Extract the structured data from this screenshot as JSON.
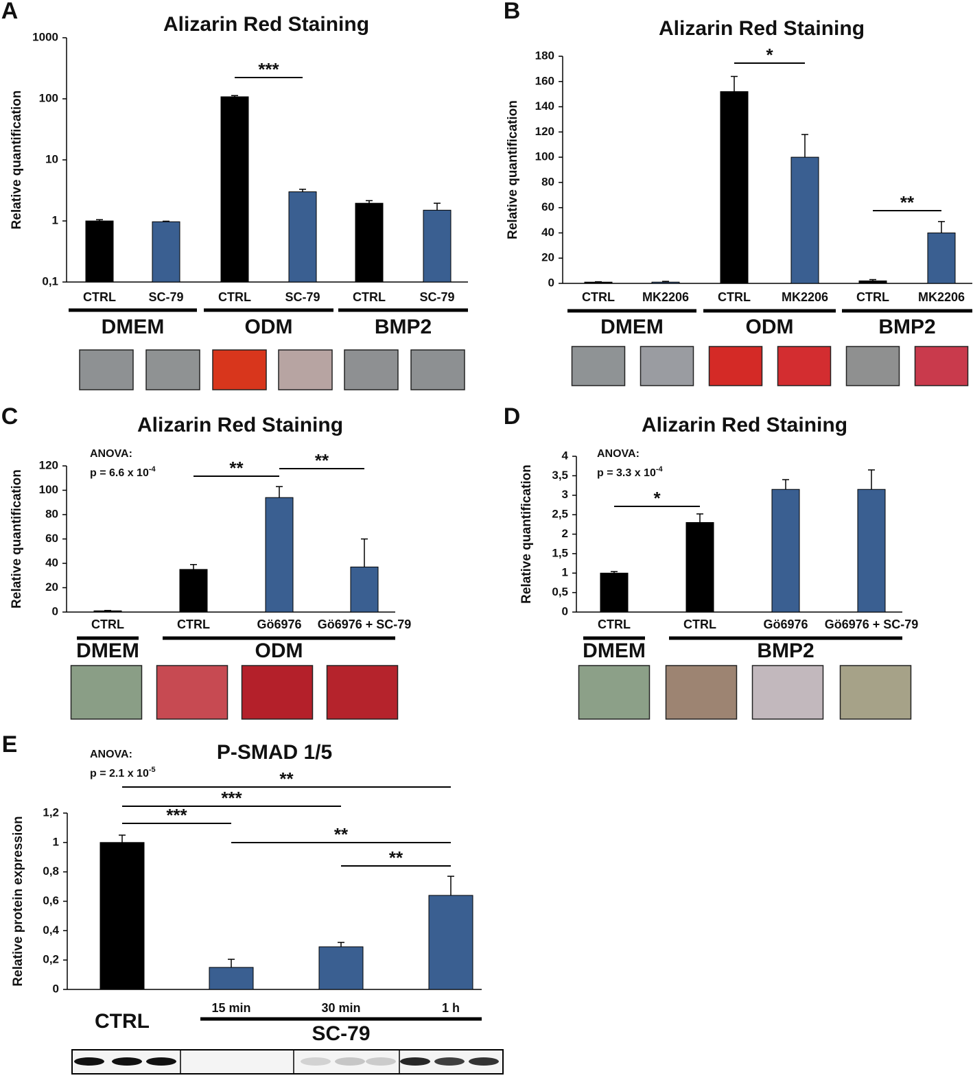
{
  "chart_data": [
    {
      "type": "bar",
      "panel": "A",
      "title": "Alizarin Red Staining",
      "y_label": "Relative quantification",
      "log_scale": true,
      "categories": [
        "CTRL",
        "SC-79",
        "CTRL",
        "SC-79",
        "CTRL",
        "SC-79"
      ],
      "values": [
        1,
        0.97,
        108,
        3,
        1.95,
        1.5
      ],
      "errors": [
        0.05,
        0.02,
        5,
        0.3,
        0.2,
        0.45
      ],
      "colors": [
        "#000000",
        "#3a5f91",
        "#000000",
        "#3a5f91",
        "#000000",
        "#3a5f91"
      ],
      "ylim": [
        0.1,
        1000
      ],
      "yticks": [
        {
          "value": 0.1,
          "label": "0,1"
        },
        1,
        10,
        100,
        1000
      ],
      "groups": [
        {
          "label": "DMEM",
          "span": [
            0,
            1
          ]
        },
        {
          "label": "ODM",
          "span": [
            2,
            3
          ]
        },
        {
          "label": "BMP2",
          "span": [
            4,
            5
          ]
        }
      ],
      "significance": [
        {
          "label": "***",
          "between": [
            2,
            3
          ]
        }
      ]
    },
    {
      "type": "bar",
      "panel": "B",
      "title": "Alizarin Red Staining",
      "y_label": "Relative quantification",
      "log_scale": false,
      "categories": [
        "CTRL",
        "MK2206",
        "CTRL",
        "MK2206",
        "CTRL",
        "MK2206"
      ],
      "values": [
        1,
        1,
        152,
        100,
        2,
        40
      ],
      "errors": [
        0.3,
        0.6,
        12,
        18,
        1,
        9
      ],
      "colors": [
        "#000000",
        "#3a5f91",
        "#000000",
        "#3a5f91",
        "#000000",
        "#3a5f91"
      ],
      "ylim": [
        0,
        180
      ],
      "yticks": [
        0,
        20,
        40,
        60,
        80,
        100,
        120,
        140,
        160,
        180
      ],
      "groups": [
        {
          "label": "DMEM",
          "span": [
            0,
            1
          ]
        },
        {
          "label": "ODM",
          "span": [
            2,
            3
          ]
        },
        {
          "label": "BMP2",
          "span": [
            4,
            5
          ]
        }
      ],
      "significance": [
        {
          "label": "*",
          "between": [
            2,
            3
          ]
        },
        {
          "label": "**",
          "between": [
            4,
            5
          ]
        }
      ]
    },
    {
      "type": "bar",
      "panel": "C",
      "title": "Alizarin Red Staining",
      "y_label": "Relative quantification",
      "log_scale": false,
      "anova": {
        "label": "ANOVA:",
        "p": "p = 6.6 x 10",
        "exponent": "-4"
      },
      "categories": [
        "CTRL",
        "CTRL",
        "Gö6976",
        "Gö6976 + SC-79"
      ],
      "values": [
        1,
        35,
        94,
        37
      ],
      "errors": [
        0.3,
        4,
        9,
        23
      ],
      "colors": [
        "#000000",
        "#000000",
        "#3a5f91",
        "#3a5f91"
      ],
      "ylim": [
        0,
        120
      ],
      "yticks": [
        0,
        20,
        40,
        60,
        80,
        100,
        120
      ],
      "groups": [
        {
          "label": "DMEM",
          "span": [
            0,
            0
          ]
        },
        {
          "label": "ODM",
          "span": [
            1,
            3
          ]
        }
      ],
      "significance": [
        {
          "label": "**",
          "between": [
            1,
            2
          ]
        },
        {
          "label": "**",
          "between": [
            2,
            3
          ]
        }
      ]
    },
    {
      "type": "bar",
      "panel": "D",
      "title": "Alizarin Red Staining",
      "y_label": "Relative quantification",
      "log_scale": false,
      "anova": {
        "label": "ANOVA:",
        "p": "p = 3.3 x 10",
        "exponent": "-4"
      },
      "categories": [
        "CTRL",
        "CTRL",
        "Gö6976",
        "Gö6976 + SC-79"
      ],
      "values": [
        1,
        2.3,
        3.15,
        3.15
      ],
      "errors": [
        0.04,
        0.22,
        0.25,
        0.5
      ],
      "colors": [
        "#000000",
        "#000000",
        "#3a5f91",
        "#3a5f91"
      ],
      "ylim": [
        0,
        4
      ],
      "yticks": [
        0,
        {
          "value": 0.5,
          "label": "0,5"
        },
        1,
        {
          "value": 1.5,
          "label": "1,5"
        },
        2,
        {
          "value": 2.5,
          "label": "2,5"
        },
        3,
        {
          "value": 3.5,
          "label": "3,5"
        },
        4
      ],
      "groups": [
        {
          "label": "DMEM",
          "span": [
            0,
            0
          ]
        },
        {
          "label": "BMP2",
          "span": [
            1,
            3
          ]
        }
      ],
      "significance": [
        {
          "label": "*",
          "between": [
            0,
            1
          ]
        }
      ]
    },
    {
      "type": "bar",
      "panel": "E",
      "title": "P-SMAD 1/5",
      "y_label": "Relative protein expression",
      "log_scale": false,
      "anova": {
        "label": "ANOVA:",
        "p": "p = 2.1 x 10",
        "exponent": "-5"
      },
      "categories": [
        "CTRL",
        "15 min",
        "30  min",
        "1 h"
      ],
      "values": [
        1,
        0.15,
        0.29,
        0.64
      ],
      "errors": [
        0.05,
        0.055,
        0.03,
        0.13
      ],
      "colors": [
        "#000000",
        "#3a5f91",
        "#3a5f91",
        "#3a5f91"
      ],
      "ylim": [
        0,
        1.2
      ],
      "yticks": [
        0,
        {
          "value": 0.2,
          "label": "0,2"
        },
        {
          "value": 0.4,
          "label": "0,4"
        },
        {
          "value": 0.6,
          "label": "0,6"
        },
        {
          "value": 0.8,
          "label": "0,8"
        },
        1,
        {
          "value": 1.2,
          "label": "1,2"
        }
      ],
      "groups": [
        {
          "label": "SC-79",
          "span": [
            1,
            3
          ]
        }
      ],
      "significance": [
        {
          "label": "**",
          "between": [
            0,
            3
          ]
        },
        {
          "label": "***",
          "between": [
            0,
            2
          ]
        },
        {
          "label": "***",
          "between": [
            0,
            1
          ]
        },
        {
          "label": "**",
          "between": [
            1,
            3
          ]
        },
        {
          "label": "**",
          "between": [
            2,
            3
          ]
        }
      ]
    }
  ]
}
